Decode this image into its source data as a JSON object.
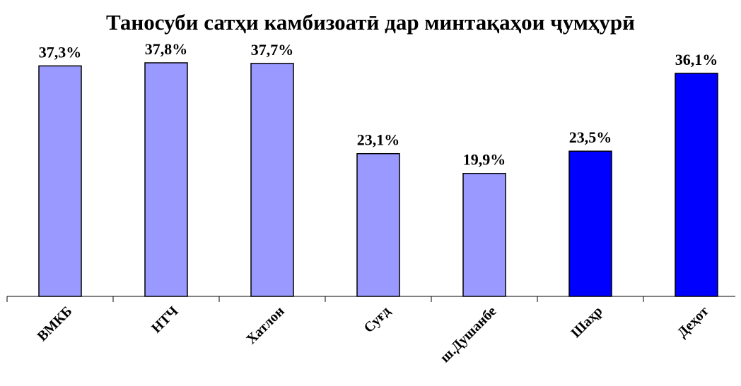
{
  "chart_data": {
    "type": "bar",
    "title": "Таносуби сатҳи камбизоатӣ дар минтақаҳои ҷумҳурӣ",
    "categories": [
      "ВМКБ",
      "НТЧ",
      "Хатлон",
      "Суғд",
      "ш.Душанбе",
      "Шаҳр",
      "Деҳот"
    ],
    "values": [
      37.3,
      37.8,
      37.7,
      23.1,
      19.9,
      23.5,
      36.1
    ],
    "value_labels": [
      "37,3%",
      "37,8%",
      "37,7%",
      "23,1%",
      "19,9%",
      "23,5%",
      "36,1%"
    ],
    "colors": [
      "#9999ff",
      "#9999ff",
      "#9999ff",
      "#9999ff",
      "#9999ff",
      "#0000ff",
      "#0000ff"
    ]
  }
}
